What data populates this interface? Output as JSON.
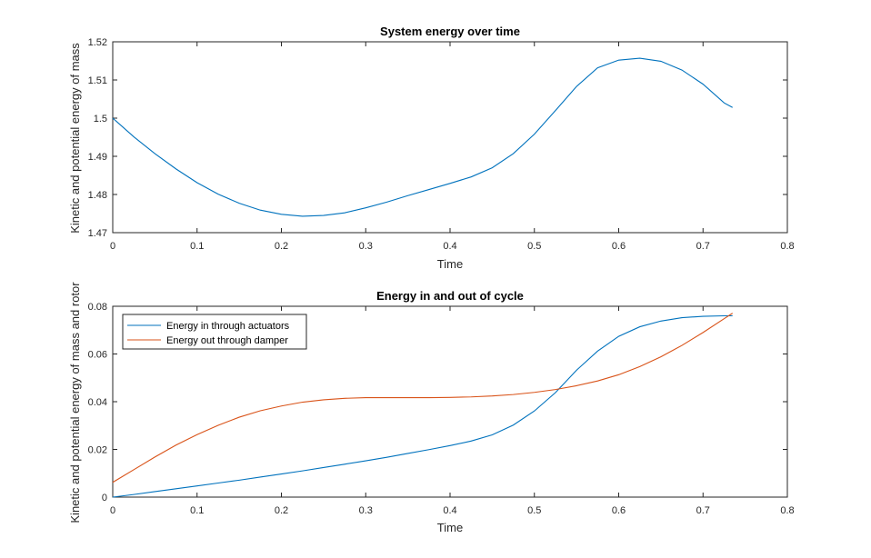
{
  "chart_data": [
    {
      "type": "line",
      "title": "System energy over time",
      "xlabel": "Time",
      "ylabel": "Kinetic and potential energy of mass",
      "xlim": [
        0,
        0.8
      ],
      "ylim": [
        1.47,
        1.52
      ],
      "xticks": [
        0,
        0.1,
        0.2,
        0.3,
        0.4,
        0.5,
        0.6,
        0.7,
        0.8
      ],
      "xtick_labels": [
        "0",
        "0.1",
        "0.2",
        "0.3",
        "0.4",
        "0.5",
        "0.6",
        "0.7",
        "0.8"
      ],
      "yticks": [
        1.47,
        1.48,
        1.49,
        1.5,
        1.51,
        1.52
      ],
      "ytick_labels": [
        "1.47",
        "1.48",
        "1.49",
        "1.5",
        "1.51",
        "1.52"
      ],
      "grid": false,
      "series": [
        {
          "color": "#0072BD",
          "x": [
            0,
            0.025,
            0.05,
            0.075,
            0.1,
            0.125,
            0.15,
            0.175,
            0.2,
            0.225,
            0.25,
            0.275,
            0.3,
            0.325,
            0.35,
            0.375,
            0.4,
            0.425,
            0.45,
            0.475,
            0.5,
            0.525,
            0.55,
            0.575,
            0.6,
            0.625,
            0.65,
            0.675,
            0.7,
            0.725,
            0.735
          ],
          "y": [
            1.5,
            1.4951,
            1.4907,
            1.4867,
            1.4831,
            1.4801,
            1.4777,
            1.4759,
            1.4748,
            1.4743,
            1.4745,
            1.4752,
            1.4765,
            1.478,
            1.4797,
            1.4813,
            1.4829,
            1.4846,
            1.487,
            1.4907,
            1.4958,
            1.502,
            1.5083,
            1.5132,
            1.5152,
            1.5157,
            1.5149,
            1.5126,
            1.5089,
            1.504,
            1.5028
          ]
        }
      ]
    },
    {
      "type": "line",
      "title": "Energy in and out of cycle",
      "xlabel": "Time",
      "ylabel": "Kinetic and potential energy of mass and rotor",
      "xlim": [
        0,
        0.8
      ],
      "ylim": [
        0,
        0.08
      ],
      "xticks": [
        0,
        0.1,
        0.2,
        0.3,
        0.4,
        0.5,
        0.6,
        0.7,
        0.8
      ],
      "xtick_labels": [
        "0",
        "0.1",
        "0.2",
        "0.3",
        "0.4",
        "0.5",
        "0.6",
        "0.7",
        "0.8"
      ],
      "yticks": [
        0,
        0.02,
        0.04,
        0.06,
        0.08
      ],
      "ytick_labels": [
        "0",
        "0.02",
        "0.04",
        "0.06",
        "0.08"
      ],
      "grid": false,
      "legend_position": "top-left",
      "series": [
        {
          "name": "Energy in through actuators",
          "color": "#0072BD",
          "x": [
            0,
            0.025,
            0.05,
            0.075,
            0.1,
            0.125,
            0.15,
            0.175,
            0.2,
            0.225,
            0.25,
            0.275,
            0.3,
            0.325,
            0.35,
            0.375,
            0.4,
            0.425,
            0.45,
            0.475,
            0.5,
            0.525,
            0.55,
            0.575,
            0.6,
            0.625,
            0.65,
            0.675,
            0.7,
            0.725,
            0.735
          ],
          "y": [
            0,
            0.0011,
            0.0023,
            0.0035,
            0.0047,
            0.0059,
            0.0071,
            0.0084,
            0.0097,
            0.011,
            0.0124,
            0.0138,
            0.0152,
            0.0167,
            0.0183,
            0.0199,
            0.0216,
            0.0235,
            0.0261,
            0.0302,
            0.0361,
            0.0438,
            0.0532,
            0.0612,
            0.0674,
            0.0714,
            0.0738,
            0.0752,
            0.0758,
            0.076,
            0.076
          ]
        },
        {
          "name": "Energy out through damper",
          "color": "#D95319",
          "x": [
            0,
            0.025,
            0.05,
            0.075,
            0.1,
            0.125,
            0.15,
            0.175,
            0.2,
            0.225,
            0.25,
            0.275,
            0.3,
            0.325,
            0.35,
            0.375,
            0.4,
            0.425,
            0.45,
            0.475,
            0.5,
            0.525,
            0.55,
            0.575,
            0.6,
            0.625,
            0.65,
            0.675,
            0.7,
            0.725,
            0.735
          ],
          "y": [
            0.0062,
            0.0115,
            0.0168,
            0.0218,
            0.0262,
            0.0301,
            0.0335,
            0.0362,
            0.0382,
            0.0398,
            0.0408,
            0.0414,
            0.0417,
            0.0417,
            0.0417,
            0.0417,
            0.0418,
            0.042,
            0.0424,
            0.043,
            0.0439,
            0.0451,
            0.0467,
            0.0487,
            0.0513,
            0.0547,
            0.0588,
            0.0636,
            0.069,
            0.0748,
            0.0771
          ]
        }
      ]
    }
  ]
}
